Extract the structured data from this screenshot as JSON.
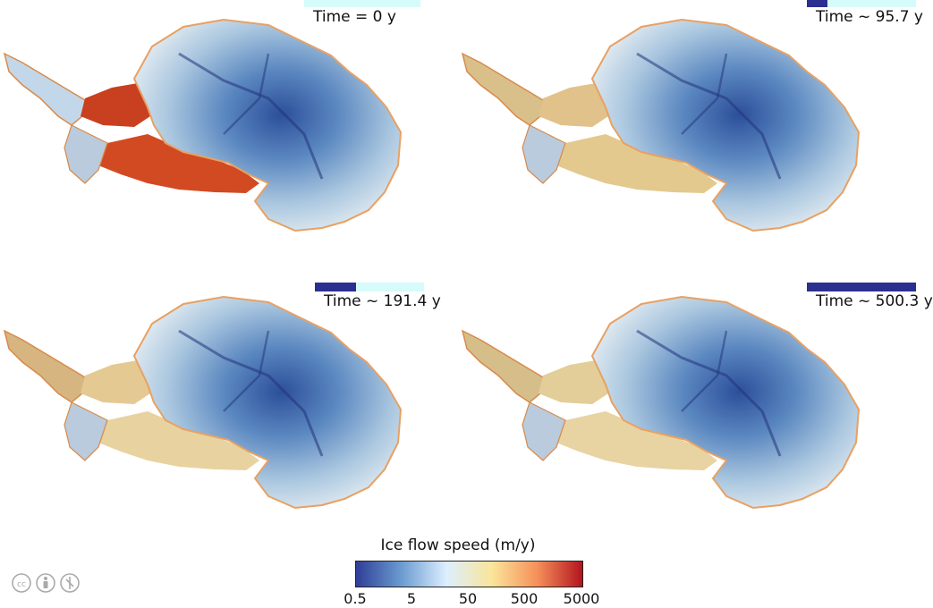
{
  "panels": [
    {
      "time_label": "Time = 0 y",
      "progress": 0.0
    },
    {
      "time_label": "Time ~ 95.7 y",
      "progress": 0.19
    },
    {
      "time_label": "Time ~ 191.4 y",
      "progress": 0.38
    },
    {
      "time_label": "Time ~ 500.3 y",
      "progress": 1.0
    }
  ],
  "colorbar": {
    "title": "Ice flow speed (m/y)",
    "ticks": [
      "0.5",
      "5",
      "50",
      "500",
      "5000"
    ],
    "colors": [
      "#2f3e97",
      "#6b9bd0",
      "#dcefff",
      "#fae59a",
      "#f6905a",
      "#b3141f"
    ]
  },
  "license_icons": [
    "cc-icon",
    "by-icon",
    "nc-icon"
  ]
}
